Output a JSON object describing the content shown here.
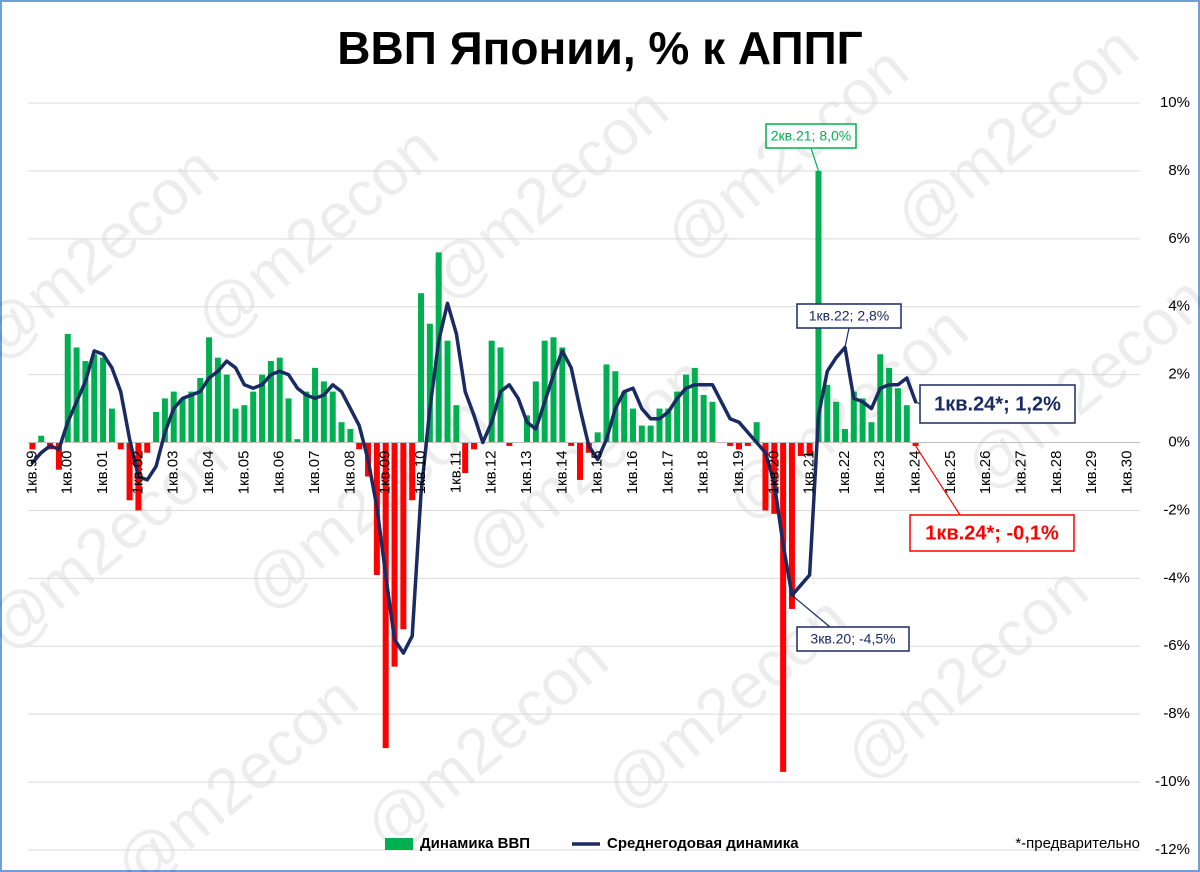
{
  "chart_data": {
    "type": "bar_line",
    "title": "ВВП Японии, % к АППГ",
    "watermark": "@m2econ",
    "footnote": "*-предварительно",
    "categories": [
      "1кв.99",
      null,
      null,
      null,
      "1кв.00",
      null,
      null,
      null,
      "1кв.01",
      null,
      null,
      null,
      "1кв.02",
      null,
      null,
      null,
      "1кв.03",
      null,
      null,
      null,
      "1кв.04",
      null,
      null,
      null,
      "1кв.05",
      null,
      null,
      null,
      "1кв.06",
      null,
      null,
      null,
      "1кв.07",
      null,
      null,
      null,
      "1кв.08",
      null,
      null,
      null,
      "1кв.09",
      null,
      null,
      null,
      "1кв.10",
      null,
      null,
      null,
      "1кв.11",
      null,
      null,
      null,
      "1кв.12",
      null,
      null,
      null,
      "1кв.13",
      null,
      null,
      null,
      "1кв.14",
      null,
      null,
      null,
      "1кв.15",
      null,
      null,
      null,
      "1кв.16",
      null,
      null,
      null,
      "1кв.17",
      null,
      null,
      null,
      "1кв.18",
      null,
      null,
      null,
      "1кв.19",
      null,
      null,
      null,
      "1кв.20",
      null,
      null,
      null,
      "1кв.21",
      null,
      null,
      null,
      "1кв.22",
      null,
      null,
      null,
      "1кв.23",
      null,
      null,
      null,
      "1кв.24",
      null,
      null,
      null,
      "1кв.25",
      null,
      null,
      null,
      "1кв.26",
      null,
      null,
      null,
      "1кв.27",
      null,
      null,
      null,
      "1кв.28",
      null,
      null,
      null,
      "1кв.29",
      null,
      null,
      null,
      "1кв.30"
    ],
    "series": [
      {
        "name": "Динамика ВВП",
        "type": "bar",
        "color": "#00b050",
        "negative_color": "#ff0000",
        "values": [
          -0.2,
          0.2,
          -0.2,
          -0.8,
          3.2,
          2.8,
          2.4,
          2.6,
          2.5,
          1.0,
          -0.2,
          -1.7,
          -2.0,
          -0.3,
          0.9,
          1.3,
          1.5,
          1.3,
          1.5,
          1.9,
          3.1,
          2.5,
          2.0,
          1.0,
          1.1,
          1.5,
          2.0,
          2.4,
          2.5,
          1.3,
          0.1,
          1.5,
          2.2,
          1.8,
          1.5,
          0.6,
          0.4,
          -0.2,
          -1.0,
          -3.9,
          -9.0,
          -6.6,
          -5.5,
          -1.7,
          4.4,
          3.5,
          5.6,
          3.0,
          1.1,
          -0.9,
          -0.2,
          0.0,
          3.0,
          2.8,
          -0.1,
          0.0,
          0.8,
          1.8,
          3.0,
          3.1,
          2.8,
          -0.1,
          -1.1,
          -0.3,
          0.3,
          2.3,
          2.1,
          1.5,
          1.0,
          0.5,
          0.5,
          1.0,
          1.0,
          1.5,
          2.0,
          2.2,
          1.4,
          1.2,
          0.0,
          -0.1,
          -0.2,
          -0.1,
          0.6,
          -2.0,
          -2.1,
          -9.7,
          -4.9,
          -0.4,
          -0.4,
          8.0,
          1.7,
          1.2,
          0.4,
          1.5,
          1.3,
          0.6,
          2.6,
          2.2,
          1.6,
          1.1,
          -0.1,
          null,
          null,
          null,
          null,
          null,
          null,
          null,
          null,
          null,
          null,
          null,
          null,
          null,
          null,
          null,
          null,
          null,
          null,
          null,
          null,
          null,
          null,
          null,
          null
        ]
      },
      {
        "name": "Среднегодовая динамика",
        "type": "line",
        "color": "#1a2a63",
        "values": [
          -0.6,
          -0.3,
          -0.1,
          -0.2,
          0.6,
          1.2,
          1.8,
          2.7,
          2.6,
          2.2,
          1.5,
          0.1,
          -1.0,
          -1.1,
          -0.7,
          0.3,
          1.0,
          1.3,
          1.4,
          1.5,
          1.9,
          2.1,
          2.4,
          2.2,
          1.7,
          1.6,
          1.7,
          2.0,
          2.1,
          2.0,
          1.6,
          1.4,
          1.3,
          1.4,
          1.7,
          1.5,
          1.0,
          0.5,
          -0.5,
          -1.9,
          -3.9,
          -5.8,
          -6.2,
          -5.7,
          -1.5,
          1.0,
          3.0,
          4.1,
          3.2,
          1.5,
          0.8,
          0.0,
          0.6,
          1.5,
          1.7,
          1.3,
          0.6,
          0.4,
          1.2,
          2.0,
          2.7,
          2.2,
          1.0,
          -0.1,
          -0.5,
          0.1,
          1.0,
          1.5,
          1.6,
          1.0,
          0.7,
          0.7,
          0.9,
          1.3,
          1.6,
          1.7,
          1.7,
          1.7,
          1.2,
          0.7,
          0.6,
          0.3,
          0.0,
          -0.3,
          -1.2,
          -3.0,
          -4.5,
          -4.2,
          -3.9,
          0.8,
          2.1,
          2.5,
          2.8,
          1.3,
          1.2,
          1.0,
          1.6,
          1.7,
          1.7,
          1.9,
          1.2,
          null,
          null,
          null,
          null,
          null,
          null,
          null,
          null,
          null,
          null,
          null,
          null,
          null,
          null,
          null,
          null,
          null,
          null,
          null,
          null,
          null,
          null,
          null,
          null
        ]
      }
    ],
    "annotations": [
      {
        "text": "2кв.21; 8,0%",
        "color": "#00b050"
      },
      {
        "text": "1кв.22; 2,8%",
        "color": "#1a2a63"
      },
      {
        "text": "3кв.20; -4,5%",
        "color": "#1a2a63"
      },
      {
        "text": "1кв.24*; 1,2%",
        "color": "#1a2a63"
      },
      {
        "text": "1кв.24*; -0,1%",
        "color": "#ff0000"
      }
    ],
    "ylim": [
      -12,
      10
    ],
    "yticks": [
      {
        "value": -12,
        "label": "-12%"
      },
      {
        "value": -10,
        "label": "-10%"
      },
      {
        "value": -8,
        "label": "-8%"
      },
      {
        "value": -6,
        "label": "-6%"
      },
      {
        "value": -4,
        "label": "-4%"
      },
      {
        "value": -2,
        "label": "-2%"
      },
      {
        "value": 0,
        "label": "0%"
      },
      {
        "value": 2,
        "label": "2%"
      },
      {
        "value": 4,
        "label": "4%"
      },
      {
        "value": 6,
        "label": "6%"
      },
      {
        "value": 8,
        "label": "8%"
      },
      {
        "value": 10,
        "label": "10%"
      }
    ],
    "grid": true
  }
}
